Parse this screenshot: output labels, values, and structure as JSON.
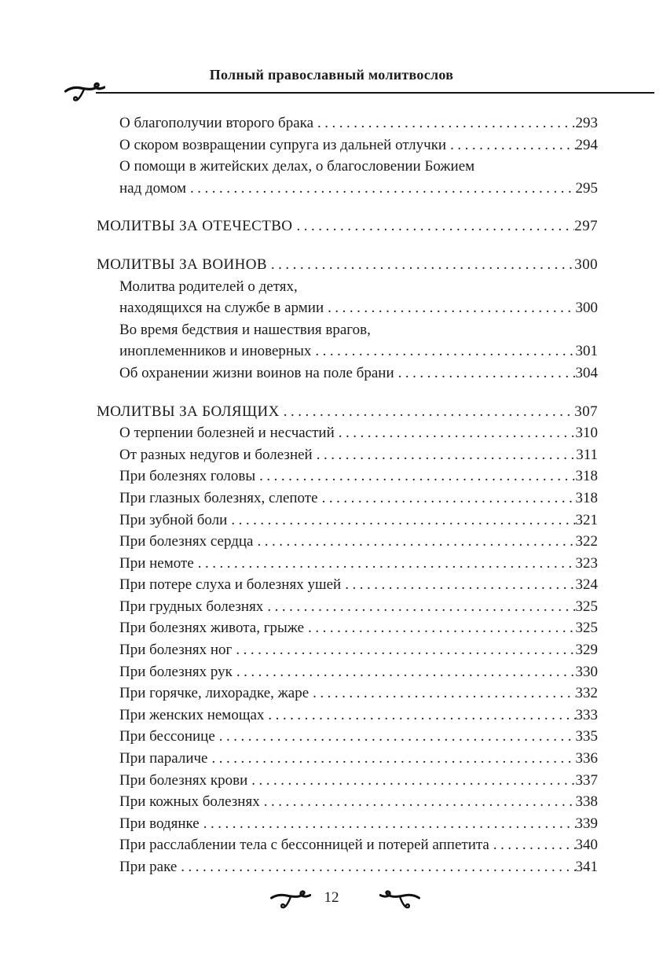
{
  "colors": {
    "text": "#1b1b1b",
    "background": "#ffffff",
    "rule": "#151515"
  },
  "header": {
    "title": "Полный православный молитвослов"
  },
  "ornaments": {
    "header_left": "calligraphic-flourish",
    "footer_left": "calligraphic-flourish",
    "footer_right": "calligraphic-flourish-mirrored"
  },
  "footer": {
    "page_number": "12"
  },
  "toc": {
    "rows": [
      {
        "kind": "entry",
        "text": "О благополучии второго брака",
        "page": "293"
      },
      {
        "kind": "entry",
        "text": "О скором возвращении супруга из дальней отлучки",
        "page": "294"
      },
      {
        "kind": "entry",
        "text": "О помощи в житейских делах, о благословении Божием",
        "page": null
      },
      {
        "kind": "entry",
        "text": "над домом",
        "page": "295"
      },
      {
        "kind": "section",
        "text": "МОЛИТВЫ ЗА ОТЕЧЕСТВО",
        "page": "297"
      },
      {
        "kind": "section",
        "text": "МОЛИТВЫ ЗА ВОИНОВ",
        "page": "300"
      },
      {
        "kind": "entry",
        "text": "Молитва родителей о детях,",
        "page": null
      },
      {
        "kind": "entry",
        "text": "находящихся на службе в армии",
        "page": "300"
      },
      {
        "kind": "entry",
        "text": "Во время бедствия и нашествия врагов,",
        "page": null
      },
      {
        "kind": "entry",
        "text": "иноплеменников и иноверных",
        "page": "301"
      },
      {
        "kind": "entry",
        "text": "Об охранении жизни воинов на поле брани",
        "page": "304"
      },
      {
        "kind": "section",
        "text": "МОЛИТВЫ ЗА БОЛЯЩИХ",
        "page": "307"
      },
      {
        "kind": "entry",
        "text": "О терпении болезней и несчастий",
        "page": "310"
      },
      {
        "kind": "entry",
        "text": "От разных недугов и болезней",
        "page": "311"
      },
      {
        "kind": "entry",
        "text": "При болезнях головы",
        "page": "318"
      },
      {
        "kind": "entry",
        "text": "При глазных болезнях, слепоте",
        "page": "318"
      },
      {
        "kind": "entry",
        "text": "При зубной боли",
        "page": "321"
      },
      {
        "kind": "entry",
        "text": "При болезнях сердца",
        "page": "322"
      },
      {
        "kind": "entry",
        "text": "При немоте",
        "page": "323"
      },
      {
        "kind": "entry",
        "text": "При потере слуха и болезнях ушей",
        "page": "324"
      },
      {
        "kind": "entry",
        "text": "При грудных болезнях",
        "page": "325"
      },
      {
        "kind": "entry",
        "text": "При болезнях живота, грыже",
        "page": "325"
      },
      {
        "kind": "entry",
        "text": "При болезнях ног",
        "page": "329"
      },
      {
        "kind": "entry",
        "text": "При болезнях рук",
        "page": "330"
      },
      {
        "kind": "entry",
        "text": "При горячке, лихорадке, жаре",
        "page": "332"
      },
      {
        "kind": "entry",
        "text": "При женских немощах",
        "page": "333"
      },
      {
        "kind": "entry",
        "text": "При бессонице",
        "page": "335"
      },
      {
        "kind": "entry",
        "text": "При параличе",
        "page": "336"
      },
      {
        "kind": "entry",
        "text": "При болезнях крови",
        "page": "337"
      },
      {
        "kind": "entry",
        "text": "При кожных болезнях",
        "page": "338"
      },
      {
        "kind": "entry",
        "text": "При водянке",
        "page": "339"
      },
      {
        "kind": "entry",
        "text": "При расслаблении тела с бессонницей и потерей аппетита",
        "page": "340"
      },
      {
        "kind": "entry",
        "text": "При раке",
        "page": "341"
      }
    ]
  }
}
